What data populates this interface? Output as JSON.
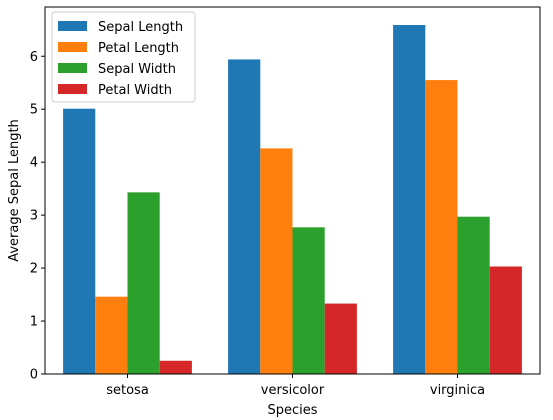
{
  "chart_data": {
    "type": "bar",
    "title": "",
    "xlabel": "Species",
    "ylabel": "Average Sepal Length",
    "categories": [
      "setosa",
      "versicolor",
      "virginica"
    ],
    "ylim": [
      0,
      6.93
    ],
    "yticks": [
      0,
      1,
      2,
      3,
      4,
      5,
      6
    ],
    "grid": false,
    "legend_position": "top-left",
    "series": [
      {
        "name": "Sepal Length",
        "color": "#1f77b4",
        "values": [
          5.01,
          5.94,
          6.59
        ]
      },
      {
        "name": "Petal Length",
        "color": "#ff7f0e",
        "values": [
          1.46,
          4.26,
          5.55
        ]
      },
      {
        "name": "Sepal Width",
        "color": "#2ca02c",
        "values": [
          3.43,
          2.77,
          2.97
        ]
      },
      {
        "name": "Petal Width",
        "color": "#d62728",
        "values": [
          0.25,
          1.33,
          2.03
        ]
      }
    ]
  }
}
